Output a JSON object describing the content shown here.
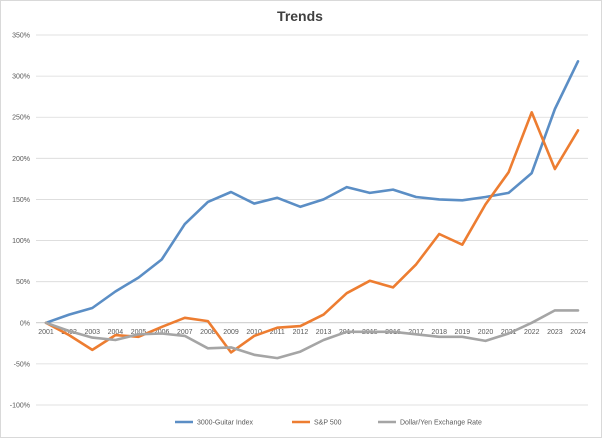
{
  "chart_data": {
    "type": "line",
    "title": "Trends",
    "xlabel": "",
    "ylabel": "",
    "x": [
      "2001",
      "2002",
      "2003",
      "2004",
      "2005",
      "2006",
      "2007",
      "2008",
      "2009",
      "2010",
      "2011",
      "2012",
      "2013",
      "2014",
      "2015",
      "2016",
      "2017",
      "2018",
      "2019",
      "2020",
      "2021",
      "2022",
      "2023",
      "2024"
    ],
    "ylim": [
      -100,
      350
    ],
    "yticks": [
      "350%",
      "300%",
      "250%",
      "200%",
      "150%",
      "100%",
      "50%",
      "0%",
      "-50%",
      "-100%"
    ],
    "ytick_values": [
      350,
      300,
      250,
      200,
      150,
      100,
      50,
      0,
      -50,
      -100
    ],
    "grid": true,
    "legend": "bottom",
    "series": [
      {
        "name": "3000-Guitar Index",
        "color": "#5b8ec5",
        "values": [
          0,
          10,
          18,
          38,
          55,
          77,
          120,
          147,
          159,
          145,
          152,
          141,
          150,
          165,
          158,
          162,
          153,
          150,
          149,
          153,
          158,
          182,
          260,
          318
        ]
      },
      {
        "name": "S&P 500",
        "color": "#ed7d31",
        "values": [
          0,
          -15,
          -33,
          -15,
          -17,
          -5,
          6,
          2,
          -36,
          -16,
          -6,
          -4,
          10,
          36,
          51,
          43,
          71,
          108,
          95,
          144,
          183,
          256,
          187,
          234
        ]
      },
      {
        "name": "Dollar/Yen Exchange Rate",
        "color": "#a5a5a5",
        "values": [
          0,
          -10,
          -18,
          -21,
          -14,
          -13,
          -16,
          -31,
          -30,
          -39,
          -43,
          -35,
          -21,
          -11,
          -11,
          -11,
          -14,
          -17,
          -17,
          -22,
          -13,
          0,
          15,
          15
        ]
      }
    ]
  }
}
